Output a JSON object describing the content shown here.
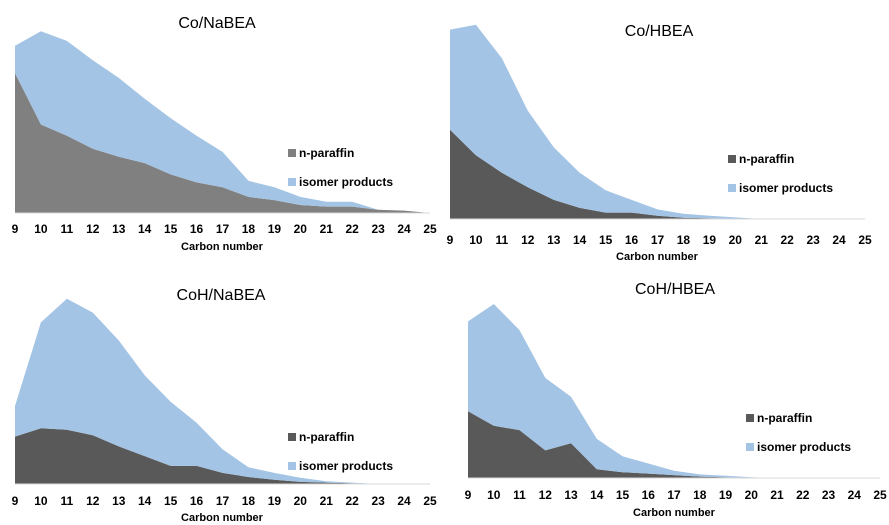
{
  "chart_data": [
    {
      "type": "area",
      "title": "Co/NaBEA",
      "xlabel": "Carbon number",
      "ylabel": "",
      "x": [
        9,
        10,
        11,
        12,
        13,
        14,
        15,
        16,
        17,
        18,
        19,
        20,
        21,
        22,
        23,
        24,
        25
      ],
      "x_tick_labels": [
        "9",
        "10",
        "11",
        "12",
        "13",
        "14",
        "15",
        "16",
        "17",
        "18",
        "19",
        "20",
        "21",
        "22",
        "23",
        "24",
        "25"
      ],
      "stacked": true,
      "legend_position": "right",
      "series": [
        {
          "name": "n-paraffin",
          "values": [
            87,
            55,
            48,
            40,
            35,
            31,
            24,
            19,
            16,
            10,
            8,
            5,
            4,
            4,
            2,
            1.5,
            0
          ],
          "color": "#808080"
        },
        {
          "name": "isomer products",
          "values": [
            17,
            58,
            59,
            55,
            49,
            40,
            35,
            29,
            22,
            10,
            8,
            5,
            3,
            3,
            0,
            0,
            0
          ],
          "color": "#a3c4e4"
        }
      ],
      "ylim": [
        0,
        120
      ]
    },
    {
      "type": "area",
      "title": "Co/HBEA",
      "xlabel": "Carbon number",
      "ylabel": "",
      "x": [
        9,
        10,
        11,
        12,
        13,
        14,
        15,
        16,
        17,
        18,
        19,
        20,
        21,
        22,
        23,
        24,
        25
      ],
      "x_tick_labels": [
        "9",
        "10",
        "11",
        "12",
        "13",
        "14",
        "15",
        "16",
        "17",
        "18",
        "19",
        "20",
        "21",
        "22",
        "23",
        "24",
        "25"
      ],
      "stacked": true,
      "legend_position": "right",
      "series": [
        {
          "name": "n-paraffin",
          "values": [
            56,
            40,
            29,
            20,
            12,
            7,
            4,
            4,
            2,
            0.8,
            0.5,
            0.2,
            0,
            0,
            0,
            0,
            0
          ],
          "color": "#595959"
        },
        {
          "name": "isomer products",
          "values": [
            63,
            82,
            72,
            48,
            33,
            22,
            14,
            8,
            4,
            2.5,
            1.5,
            0.8,
            0,
            0,
            0,
            0,
            0
          ],
          "color": "#a3c4e4"
        }
      ],
      "ylim": [
        0,
        125
      ]
    },
    {
      "type": "area",
      "title": "CoH/NaBEA",
      "xlabel": "Carbon number",
      "ylabel": "",
      "x": [
        9,
        10,
        11,
        12,
        13,
        14,
        15,
        16,
        17,
        18,
        19,
        20,
        21,
        22,
        23,
        24,
        25
      ],
      "x_tick_labels": [
        "9",
        "10",
        "11",
        "12",
        "13",
        "14",
        "15",
        "16",
        "17",
        "18",
        "19",
        "20",
        "21",
        "22",
        "23",
        "24",
        "25"
      ],
      "stacked": true,
      "legend_position": "right",
      "series": [
        {
          "name": "n-paraffin",
          "values": [
            34,
            40,
            39,
            35,
            27,
            20,
            13,
            13,
            8,
            5,
            3,
            1.5,
            1,
            0.5,
            0,
            0,
            0
          ],
          "color": "#595959"
        },
        {
          "name": "isomer products",
          "values": [
            22,
            76,
            94,
            88,
            76,
            58,
            46,
            31,
            17,
            7,
            5,
            3,
            1,
            0.5,
            0,
            0,
            0
          ],
          "color": "#a3c4e4"
        }
      ],
      "ylim": [
        0,
        150
      ]
    },
    {
      "type": "area",
      "title": "CoH/HBEA",
      "xlabel": "Carbon number",
      "ylabel": "",
      "x": [
        9,
        10,
        11,
        12,
        13,
        14,
        15,
        16,
        17,
        18,
        19,
        20,
        21,
        22,
        23,
        24,
        25
      ],
      "x_tick_labels": [
        "9",
        "10",
        "11",
        "12",
        "13",
        "14",
        "15",
        "16",
        "17",
        "18",
        "19",
        "20",
        "21",
        "22",
        "23",
        "24",
        "25"
      ],
      "stacked": true,
      "legend_position": "right",
      "series": [
        {
          "name": "n-paraffin",
          "values": [
            46,
            36,
            33,
            19,
            24,
            6,
            4,
            3,
            2,
            1,
            0.5,
            0,
            0,
            0,
            0,
            0,
            0
          ],
          "color": "#595959"
        },
        {
          "name": "isomer products",
          "values": [
            62,
            84,
            69,
            50,
            32,
            21,
            11,
            7,
            3,
            1.5,
            1,
            0.5,
            0,
            0,
            0,
            0,
            0
          ],
          "color": "#a3c4e4"
        }
      ],
      "ylim": [
        0,
        140
      ]
    }
  ]
}
